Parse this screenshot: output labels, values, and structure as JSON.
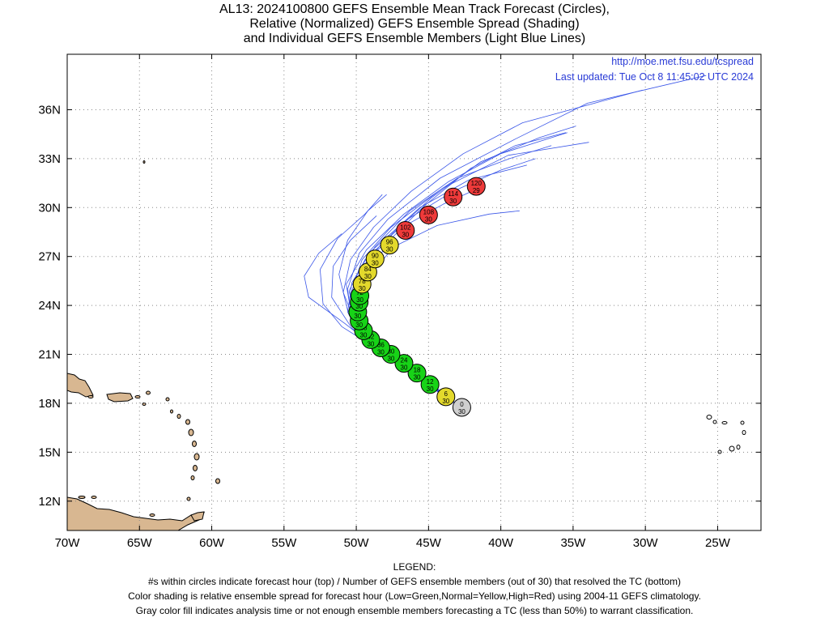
{
  "title_lines": [
    "AL13: 2024100800 GEFS Ensemble Mean Track Forecast (Circles),",
    "Relative (Normalized) GEFS Ensemble Spread (Shading)",
    "and Individual GEFS Ensemble Members (Light Blue Lines)"
  ],
  "source": {
    "url": "http://moe.met.fsu.edu/tcspread",
    "updated": "Last updated: Tue Oct 8 11:45:02 UTC 2024"
  },
  "legend": {
    "heading": "LEGEND:",
    "lines": [
      "#s within circles indicate forecast hour (top) / Number of GEFS ensemble members (out of 30) that resolved the TC (bottom)",
      "Color shading is relative ensemble spread for forecast hour (Low=Green,Normal=Yellow,High=Red) using 2004-11 GEFS climatology.",
      "Gray color fill indicates analysis time or not enough ensemble members forecasting a TC (less than 50%) to warrant classification."
    ]
  },
  "colors": {
    "low": "#17d317",
    "normal": "#e3d92c",
    "high": "#ee3a3a",
    "analysis": "#cfcfcf",
    "member_line": "#3a56e8",
    "land": "#d8b791"
  },
  "chart_data": {
    "type": "map",
    "projection": "equirectangular",
    "xlim": [
      -70,
      -22
    ],
    "ylim": [
      10.2,
      39.4
    ],
    "x_ticks": [
      {
        "lon": -70,
        "label": "70W"
      },
      {
        "lon": -65,
        "label": "65W"
      },
      {
        "lon": -60,
        "label": "60W"
      },
      {
        "lon": -55,
        "label": "55W"
      },
      {
        "lon": -50,
        "label": "50W"
      },
      {
        "lon": -45,
        "label": "45W"
      },
      {
        "lon": -40,
        "label": "40W"
      },
      {
        "lon": -35,
        "label": "35W"
      },
      {
        "lon": -30,
        "label": "30W"
      },
      {
        "lon": -25,
        "label": "25W"
      }
    ],
    "y_ticks": [
      {
        "lat": 12,
        "label": "12N"
      },
      {
        "lat": 15,
        "label": "15N"
      },
      {
        "lat": 18,
        "label": "18N"
      },
      {
        "lat": 21,
        "label": "21N"
      },
      {
        "lat": 24,
        "label": "24N"
      },
      {
        "lat": 27,
        "label": "27N"
      },
      {
        "lat": 30,
        "label": "30N"
      },
      {
        "lat": 33,
        "label": "33N"
      },
      {
        "lat": 36,
        "label": "36N"
      }
    ],
    "grid": true,
    "mean_track": [
      {
        "hour": "0",
        "members": "30",
        "lon": -42.7,
        "lat": 17.75,
        "spread": "analysis"
      },
      {
        "hour": "6",
        "members": "30",
        "lon": -43.8,
        "lat": 18.4,
        "spread": "normal"
      },
      {
        "hour": "12",
        "members": "30",
        "lon": -44.9,
        "lat": 19.15,
        "spread": "low"
      },
      {
        "hour": "18",
        "members": "30",
        "lon": -45.8,
        "lat": 19.85,
        "spread": "low"
      },
      {
        "hour": "24",
        "members": "30",
        "lon": -46.7,
        "lat": 20.45,
        "spread": "low"
      },
      {
        "hour": "30",
        "members": "30",
        "lon": -47.6,
        "lat": 21.0,
        "spread": "low"
      },
      {
        "hour": "36",
        "members": "30",
        "lon": -48.3,
        "lat": 21.4,
        "spread": "low"
      },
      {
        "hour": "42",
        "members": "30",
        "lon": -49.0,
        "lat": 21.9,
        "spread": "low"
      },
      {
        "hour": "48",
        "members": "30",
        "lon": -49.5,
        "lat": 22.45,
        "spread": "low"
      },
      {
        "hour": "54",
        "members": "30",
        "lon": -49.8,
        "lat": 23.05,
        "spread": "low"
      },
      {
        "hour": "60",
        "members": "30",
        "lon": -49.9,
        "lat": 23.6,
        "spread": "low"
      },
      {
        "hour": "66",
        "members": "30",
        "lon": -49.8,
        "lat": 24.2,
        "spread": "low"
      },
      {
        "hour": "72",
        "members": "30",
        "lon": -49.75,
        "lat": 24.6,
        "spread": "low"
      },
      {
        "hour": "78",
        "members": "30",
        "lon": -49.6,
        "lat": 25.3,
        "spread": "normal"
      },
      {
        "hour": "84",
        "members": "30",
        "lon": -49.2,
        "lat": 26.05,
        "spread": "normal"
      },
      {
        "hour": "90",
        "members": "30",
        "lon": -48.7,
        "lat": 26.85,
        "spread": "normal"
      },
      {
        "hour": "96",
        "members": "30",
        "lon": -47.7,
        "lat": 27.7,
        "spread": "normal"
      },
      {
        "hour": "102",
        "members": "30",
        "lon": -46.6,
        "lat": 28.6,
        "spread": "high"
      },
      {
        "hour": "108",
        "members": "30",
        "lon": -45.0,
        "lat": 29.55,
        "spread": "high"
      },
      {
        "hour": "114",
        "members": "30",
        "lon": -43.3,
        "lat": 30.65,
        "spread": "high"
      },
      {
        "hour": "120",
        "members": "29",
        "lon": -41.7,
        "lat": 31.3,
        "spread": "high"
      }
    ],
    "member_tracks": [
      [
        [
          -42.7,
          17.7
        ],
        [
          -45,
          19.2
        ],
        [
          -47.5,
          20.9
        ],
        [
          -49.8,
          22.8
        ],
        [
          -50.4,
          24.6
        ],
        [
          -49.6,
          26.8
        ],
        [
          -47.6,
          28.8
        ],
        [
          -44,
          31.2
        ],
        [
          -39.5,
          33.2
        ],
        [
          -33.9,
          34
        ]
      ],
      [
        [
          -42.7,
          17.7
        ],
        [
          -45.2,
          19.3
        ],
        [
          -48,
          21
        ],
        [
          -50.3,
          23
        ],
        [
          -50.6,
          25
        ],
        [
          -49.8,
          27.2
        ],
        [
          -47.8,
          29.3
        ],
        [
          -44.2,
          31.8
        ],
        [
          -39,
          34.2
        ],
        [
          -34,
          36.4
        ],
        [
          -25.8,
          38.1
        ]
      ],
      [
        [
          -42.7,
          17.7
        ],
        [
          -45,
          19.1
        ],
        [
          -47.8,
          21
        ],
        [
          -50,
          22.8
        ],
        [
          -50.9,
          24.8
        ],
        [
          -50.4,
          26.8
        ],
        [
          -48.8,
          28.8
        ],
        [
          -46.2,
          31
        ],
        [
          -42.6,
          33.3
        ],
        [
          -38.5,
          35.2
        ],
        [
          -30.2,
          37.2
        ]
      ],
      [
        [
          -42.7,
          17.7
        ],
        [
          -45.5,
          19.4
        ],
        [
          -48.5,
          21.3
        ],
        [
          -51,
          22.7
        ],
        [
          -52.3,
          24.1
        ],
        [
          -52.5,
          26.2
        ],
        [
          -51.3,
          28.1
        ],
        [
          -49.4,
          29.6
        ],
        [
          -48.2,
          30.8
        ]
      ],
      [
        [
          -42.7,
          17.7
        ],
        [
          -45.1,
          19.2
        ],
        [
          -48.2,
          21.1
        ],
        [
          -50.8,
          22.9
        ],
        [
          -53.3,
          24.5
        ],
        [
          -53.6,
          25.8
        ],
        [
          -52.6,
          27.2
        ],
        [
          -51,
          28.4
        ]
      ],
      [
        [
          -42.7,
          17.7
        ],
        [
          -45,
          19.2
        ],
        [
          -47.6,
          20.9
        ],
        [
          -49.8,
          22.2
        ],
        [
          -50.6,
          23.6
        ],
        [
          -50.3,
          25.4
        ],
        [
          -49,
          27.3
        ],
        [
          -46.6,
          29.2
        ],
        [
          -43.3,
          31
        ],
        [
          -40,
          32.3
        ],
        [
          -37.6,
          33
        ]
      ],
      [
        [
          -42.7,
          17.7
        ],
        [
          -44.9,
          19.1
        ],
        [
          -47.4,
          20.8
        ],
        [
          -49.3,
          22.5
        ],
        [
          -49.6,
          24.2
        ],
        [
          -49.1,
          26
        ],
        [
          -47.7,
          28
        ],
        [
          -45.3,
          30.1
        ],
        [
          -42.1,
          32.4
        ],
        [
          -39,
          33.8
        ],
        [
          -35.5,
          34.6
        ]
      ],
      [
        [
          -42.7,
          17.7
        ],
        [
          -45,
          19.2
        ],
        [
          -47.3,
          20.9
        ],
        [
          -49.3,
          22.4
        ],
        [
          -49.6,
          24.2
        ],
        [
          -48.9,
          26
        ],
        [
          -47.4,
          27.6
        ],
        [
          -44.4,
          28.9
        ],
        [
          -40.8,
          29.6
        ],
        [
          -38.7,
          29.8
        ]
      ],
      [
        [
          -42.7,
          17.7
        ],
        [
          -45.2,
          19.3
        ],
        [
          -47.9,
          21
        ],
        [
          -50.3,
          22.6
        ],
        [
          -51.7,
          24.5
        ],
        [
          -51.6,
          26.4
        ],
        [
          -50.4,
          28
        ],
        [
          -48.6,
          29.5
        ]
      ],
      [
        [
          -42.7,
          17.7
        ],
        [
          -45,
          19.3
        ],
        [
          -47.8,
          21.2
        ],
        [
          -50.3,
          23.3
        ],
        [
          -50.7,
          25.3
        ],
        [
          -49.3,
          27.4
        ],
        [
          -46.7,
          29.6
        ],
        [
          -43.6,
          31.6
        ],
        [
          -40,
          33.3
        ],
        [
          -35.4,
          34.6
        ]
      ],
      [
        [
          -42.7,
          17.7
        ],
        [
          -44.8,
          19.2
        ],
        [
          -47.2,
          20.9
        ],
        [
          -49.4,
          22.3
        ],
        [
          -50.1,
          24.1
        ],
        [
          -49.7,
          26
        ],
        [
          -48.1,
          28
        ],
        [
          -45.6,
          30
        ],
        [
          -42.2,
          31.7
        ],
        [
          -38.2,
          32.6
        ]
      ],
      [
        [
          -42.7,
          17.7
        ],
        [
          -45.3,
          19.3
        ],
        [
          -48.3,
          21.4
        ],
        [
          -50.6,
          23.7
        ],
        [
          -51.2,
          25.9
        ],
        [
          -50.6,
          28
        ],
        [
          -49.2,
          29.8
        ],
        [
          -47.9,
          30.8
        ]
      ],
      [
        [
          -42.7,
          17.7
        ],
        [
          -45,
          19.2
        ],
        [
          -47.8,
          21.2
        ],
        [
          -49.8,
          23.2
        ],
        [
          -50.1,
          25.4
        ],
        [
          -48.7,
          27.6
        ],
        [
          -46.3,
          29.8
        ],
        [
          -43,
          31.8
        ],
        [
          -39.4,
          33
        ],
        [
          -36.5,
          33.8
        ]
      ],
      [
        [
          -42.7,
          17.7
        ],
        [
          -45,
          19.2
        ],
        [
          -47.6,
          21
        ],
        [
          -50,
          22.9
        ],
        [
          -50.5,
          24.9
        ],
        [
          -49.4,
          26.8
        ],
        [
          -47.2,
          28.6
        ],
        [
          -44,
          30.2
        ],
        [
          -41.5,
          31.2
        ]
      ],
      [
        [
          -42.7,
          17.7
        ],
        [
          -44.9,
          19.2
        ],
        [
          -47.4,
          20.9
        ],
        [
          -49.5,
          22.7
        ],
        [
          -50.2,
          24.5
        ],
        [
          -49.5,
          26.4
        ],
        [
          -47.5,
          28.4
        ],
        [
          -44.8,
          30.6
        ],
        [
          -41.4,
          32.8
        ],
        [
          -37.3,
          34.3
        ],
        [
          -34.8,
          35
        ]
      ]
    ]
  }
}
